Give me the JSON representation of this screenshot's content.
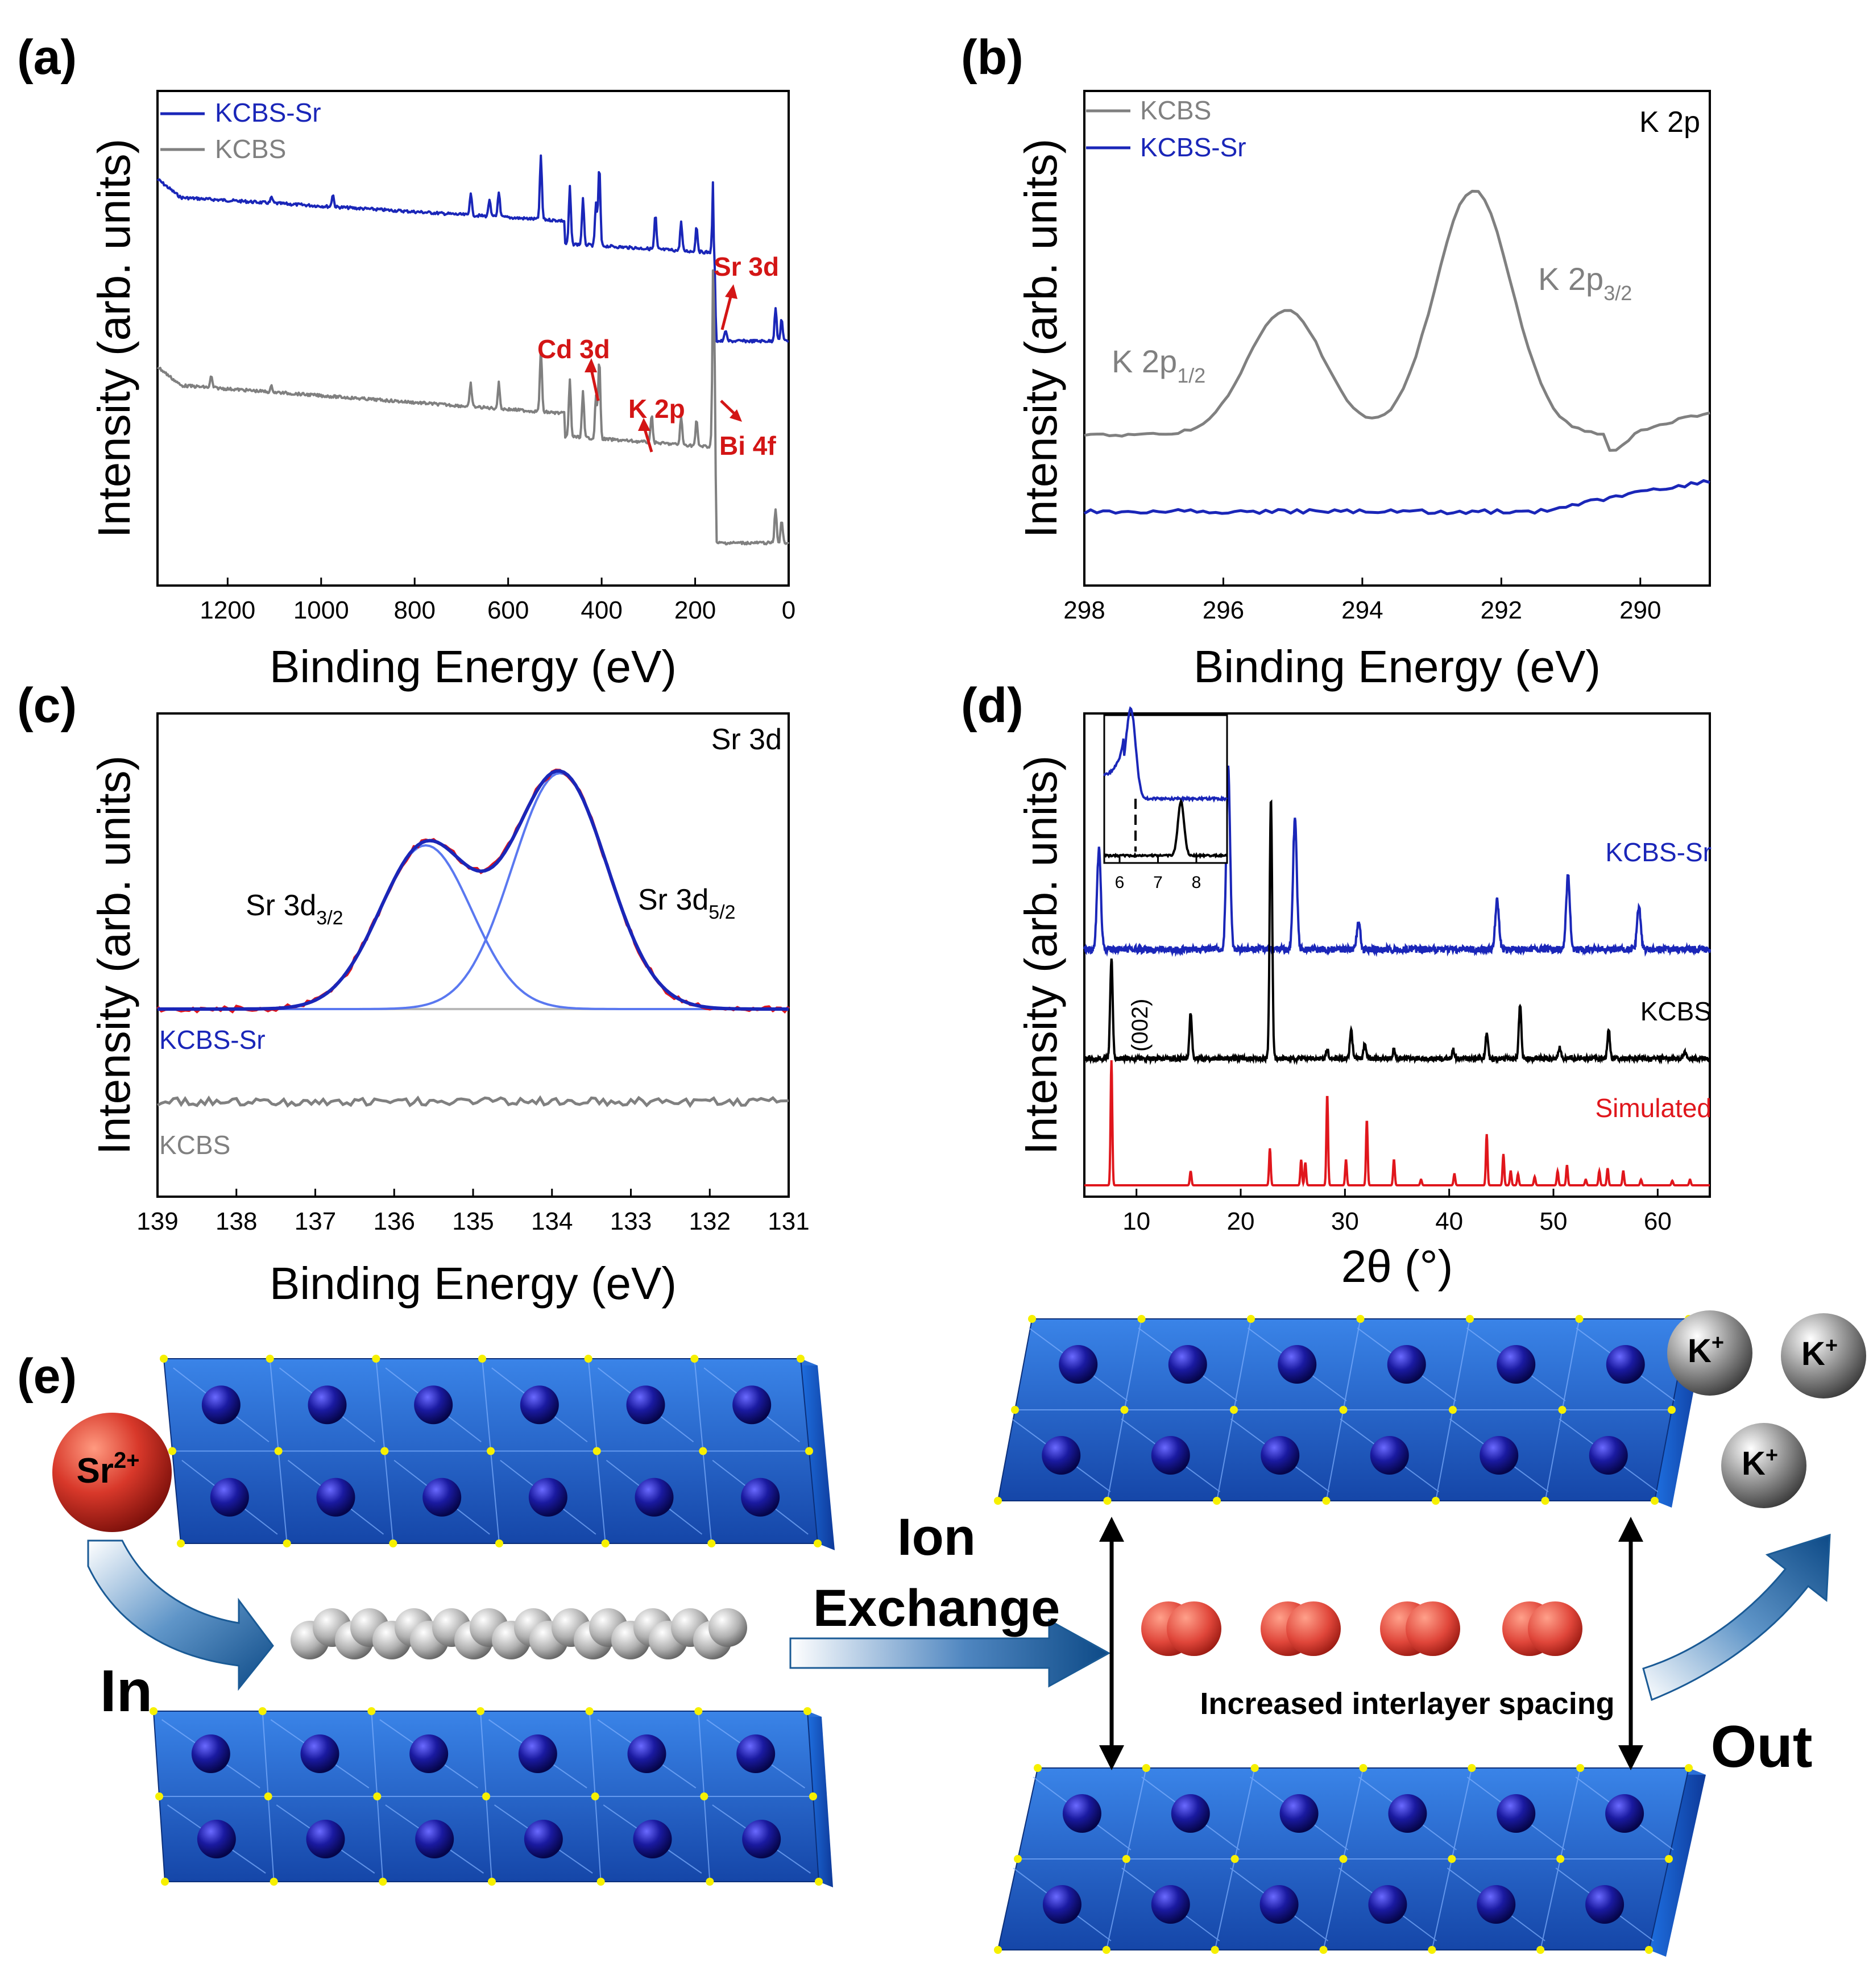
{
  "figure": {
    "panel_labels": [
      "(a)",
      "(b)",
      "(c)",
      "(d)",
      "(e)"
    ],
    "y_axis_label": "Intensity (arb. units)"
  },
  "colors": {
    "kcbs_sr": "#1a26b8",
    "kcbs": "#808080",
    "xrd_kcbs": "#000000",
    "simulated": "#e0161c",
    "annotation": "#d31515",
    "fit_component": "#5a78f0"
  },
  "chart_data": [
    {
      "panel": "(a)",
      "type": "line",
      "title": "",
      "xlabel": "Binding Energy (eV)",
      "ylabel": "Intensity (arb. units)",
      "xlim": [
        1350,
        0
      ],
      "xticks": [
        1200,
        1000,
        800,
        600,
        400,
        200,
        0
      ],
      "legend": [
        "KCBS-Sr",
        "KCBS"
      ],
      "legend_position": "top-left",
      "annotations": [
        "Cd 3d",
        "K 2p",
        "Sr 3d",
        "Bi 4f"
      ],
      "series": [
        {
          "name": "KCBS-Sr",
          "peaks_eV": [
            1106,
            975,
            680,
            640,
            620,
            530,
            468,
            440,
            412,
            405,
            285,
            230,
            197,
            160,
            135,
            28,
            15
          ]
        },
        {
          "name": "KCBS",
          "peaks_eV": [
            1235,
            1106,
            680,
            620,
            530,
            468,
            440,
            412,
            405,
            293,
            230,
            197,
            160,
            28,
            15
          ]
        }
      ]
    },
    {
      "panel": "(b)",
      "type": "line",
      "title": "K 2p",
      "xlabel": "Binding Energy (eV)",
      "ylabel": "Intensity (arb. units)",
      "xlim": [
        298,
        289
      ],
      "xticks": [
        298,
        296,
        294,
        292,
        290
      ],
      "legend": [
        "KCBS",
        "KCBS-Sr"
      ],
      "legend_position": "top-left",
      "annotations": [
        "K 2p1/2",
        "K 2p3/2"
      ],
      "series": [
        {
          "name": "KCBS",
          "peaks_eV": [
            295.1,
            292.4
          ]
        },
        {
          "name": "KCBS-Sr",
          "peaks_eV": []
        }
      ]
    },
    {
      "panel": "(c)",
      "type": "line",
      "title": "Sr 3d",
      "xlabel": "Binding Energy (eV)",
      "ylabel": "Intensity (arb. units)",
      "xlim": [
        139,
        131
      ],
      "xticks": [
        139,
        138,
        137,
        136,
        135,
        134,
        133,
        132,
        131
      ],
      "legend": [
        "KCBS-Sr",
        "KCBS"
      ],
      "annotations": [
        "Sr 3d3/2",
        "Sr 3d5/2"
      ],
      "series": [
        {
          "name": "KCBS-Sr",
          "peaks_eV": [
            135.6,
            133.9
          ]
        },
        {
          "name": "KCBS",
          "peaks_eV": []
        }
      ]
    },
    {
      "panel": "(d)",
      "type": "line",
      "title": "",
      "xlabel": "2θ (°)",
      "ylabel": "Intensity (arb. units)",
      "xlim": [
        5,
        65
      ],
      "xticks": [
        10,
        20,
        30,
        40,
        50,
        60
      ],
      "legend": [
        "KCBS-Sr",
        "KCBS",
        "Simulated"
      ],
      "annotations": [
        "(002)"
      ],
      "inset": {
        "xlim": [
          5.6,
          8.8
        ],
        "xticks": [
          6,
          7,
          8
        ]
      },
      "series": [
        {
          "name": "KCBS-Sr",
          "peaks_2theta": [
            6.4,
            18.8,
            25.2,
            31.3,
            44.6,
            51.4,
            58.2
          ]
        },
        {
          "name": "KCBS",
          "peaks_2theta": [
            7.6,
            15.2,
            22.9,
            28.3,
            30.6,
            31.9,
            34.7,
            40.4,
            43.6,
            46.8,
            50.6,
            55.3,
            62.6
          ]
        },
        {
          "name": "Simulated",
          "peaks_2theta": [
            7.6,
            15.2,
            22.8,
            25.8,
            26.2,
            28.3,
            30.1,
            32.1,
            34.7,
            37.3,
            40.5,
            43.6,
            45.2,
            45.9,
            46.6,
            48.2,
            50.4,
            51.3,
            53.1,
            54.4,
            55.2,
            56.7,
            58.4,
            61.4,
            63.1
          ]
        }
      ]
    }
  ],
  "schematic": {
    "panel": "(e)",
    "ion_in": "Sr",
    "ion_in_charge": "2+",
    "ion_out": "K",
    "ion_out_charge": "+",
    "in_label": "In",
    "out_label": "Out",
    "arrow_label_line1": "Ion",
    "arrow_label_line2": "Exchange",
    "spacing_label": "Increased interlayer spacing"
  }
}
